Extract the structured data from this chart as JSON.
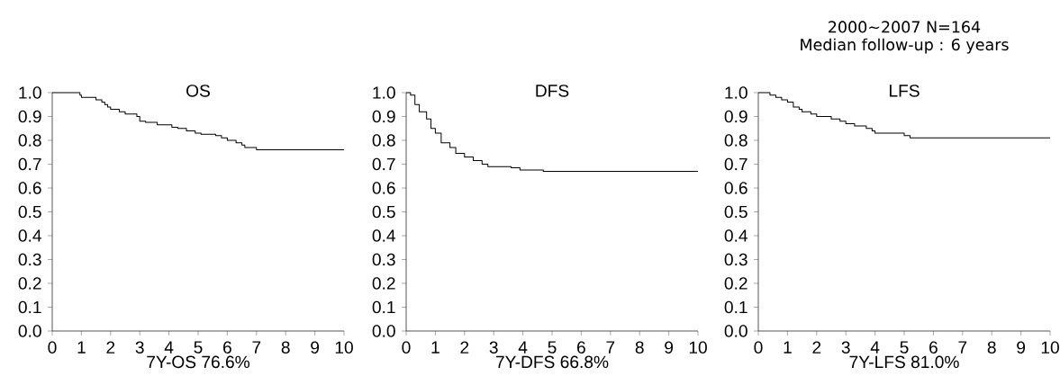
{
  "chart_data": [
    {
      "type": "step",
      "title": "OS",
      "xlabel": "7Y-OS  76.6%",
      "color": "#000000",
      "x": [
        0,
        0.95,
        1.0,
        1.5,
        1.7,
        1.8,
        1.9,
        2.0,
        2.3,
        2.5,
        2.9,
        3.0,
        3.2,
        3.6,
        4.1,
        4.3,
        4.6,
        4.9,
        5.1,
        5.6,
        5.8,
        6.0,
        6.3,
        6.5,
        6.6,
        7.0,
        10
      ],
      "values": [
        1.0,
        0.99,
        0.98,
        0.97,
        0.96,
        0.95,
        0.94,
        0.93,
        0.92,
        0.91,
        0.9,
        0.88,
        0.875,
        0.865,
        0.855,
        0.85,
        0.84,
        0.83,
        0.825,
        0.82,
        0.81,
        0.8,
        0.79,
        0.78,
        0.77,
        0.76,
        0.76
      ],
      "xlim": [
        0,
        10
      ],
      "ylim": [
        0,
        1
      ],
      "xticks": [
        0,
        1,
        2,
        3,
        4,
        5,
        6,
        7,
        8,
        9,
        10
      ],
      "yticks": [
        {
          "value": 0,
          "label": "0.0"
        },
        {
          "value": 0.1,
          "label": "0.1"
        },
        {
          "value": 0.2,
          "label": "0.2"
        },
        {
          "value": 0.3,
          "label": "0.3"
        },
        {
          "value": 0.4,
          "label": "0.4"
        },
        {
          "value": 0.5,
          "label": "0.5"
        },
        {
          "value": 0.6,
          "label": "0.6"
        },
        {
          "value": 0.7,
          "label": "0.7"
        },
        {
          "value": 0.8,
          "label": "0.8"
        },
        {
          "value": 0.9,
          "label": "0.9"
        },
        {
          "value": 1.0,
          "label": "1.0"
        }
      ]
    },
    {
      "type": "step",
      "title": "DFS",
      "xlabel": "7Y-DFS  66.8%",
      "color": "#000000",
      "x": [
        0,
        0.15,
        0.3,
        0.45,
        0.7,
        0.85,
        1.0,
        1.2,
        1.5,
        1.7,
        2.0,
        2.3,
        2.6,
        2.8,
        3.6,
        3.9,
        4.7,
        10
      ],
      "values": [
        1.0,
        0.99,
        0.95,
        0.92,
        0.89,
        0.85,
        0.83,
        0.79,
        0.77,
        0.745,
        0.73,
        0.715,
        0.7,
        0.69,
        0.685,
        0.675,
        0.67,
        0.67
      ],
      "xlim": [
        0,
        10
      ],
      "ylim": [
        0,
        1
      ],
      "xticks": [
        0,
        1,
        2,
        3,
        4,
        5,
        6,
        7,
        8,
        9,
        10
      ],
      "yticks": [
        {
          "value": 0,
          "label": "0.0"
        },
        {
          "value": 0.1,
          "label": "0.1"
        },
        {
          "value": 0.2,
          "label": "0.2"
        },
        {
          "value": 0.3,
          "label": "0.3"
        },
        {
          "value": 0.4,
          "label": "0.4"
        },
        {
          "value": 0.5,
          "label": "0.5"
        },
        {
          "value": 0.6,
          "label": "0.6"
        },
        {
          "value": 0.7,
          "label": "0.7"
        },
        {
          "value": 0.8,
          "label": "0.8"
        },
        {
          "value": 0.9,
          "label": "0.9"
        },
        {
          "value": 1.0,
          "label": "1.0"
        }
      ]
    },
    {
      "type": "step",
      "title": "LFS",
      "xlabel": "7Y-LFS  81.0%",
      "color": "#000000",
      "annotations": [
        "2000∼2007   N=164",
        "Median follow-up : 6 years"
      ],
      "x": [
        0,
        0.4,
        0.6,
        0.8,
        1.0,
        1.2,
        1.4,
        1.5,
        1.8,
        2.0,
        2.5,
        2.8,
        3.0,
        3.3,
        3.7,
        3.9,
        4.0,
        5.0,
        5.2,
        10
      ],
      "values": [
        1.0,
        0.99,
        0.98,
        0.97,
        0.96,
        0.94,
        0.93,
        0.92,
        0.91,
        0.9,
        0.89,
        0.88,
        0.87,
        0.86,
        0.85,
        0.84,
        0.83,
        0.82,
        0.81,
        0.81
      ],
      "xlim": [
        0,
        10
      ],
      "ylim": [
        0,
        1
      ],
      "xticks": [
        0,
        1,
        2,
        3,
        4,
        5,
        6,
        7,
        8,
        9,
        10
      ],
      "yticks": [
        {
          "value": 0,
          "label": "0.0"
        },
        {
          "value": 0.1,
          "label": "0.1"
        },
        {
          "value": 0.2,
          "label": "0.2"
        },
        {
          "value": 0.3,
          "label": "0.3"
        },
        {
          "value": 0.4,
          "label": "0.4"
        },
        {
          "value": 0.5,
          "label": "0.5"
        },
        {
          "value": 0.6,
          "label": "0.6"
        },
        {
          "value": 0.7,
          "label": "0.7"
        },
        {
          "value": 0.8,
          "label": "0.8"
        },
        {
          "value": 0.9,
          "label": "0.9"
        },
        {
          "value": 1.0,
          "label": "1.0"
        }
      ]
    }
  ]
}
